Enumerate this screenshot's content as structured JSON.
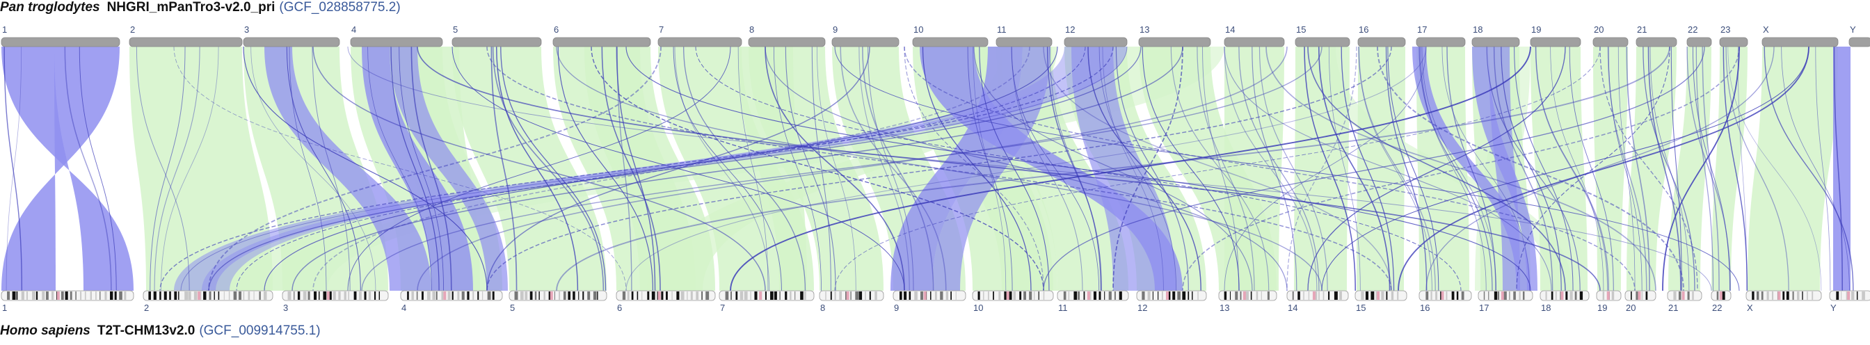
{
  "top_assembly": {
    "species": "Pan troglodytes",
    "assembly": "NHGRI_mPanTro3-v2.0_pri",
    "accession": "(GCF_028858775.2)"
  },
  "bottom_assembly": {
    "species": "Homo sapiens",
    "assembly": "T2T-CHM13v2.0",
    "accession": "(GCF_009914755.1)"
  },
  "colors": {
    "same_orientation": "#d4f3c9",
    "inverted": "#8f8ff0",
    "ideogram_top": "#a0a0a0",
    "thin_link": "#3a3ab8"
  },
  "top_chromosomes": [
    "1",
    "2",
    "3",
    "4",
    "5",
    "6",
    "7",
    "8",
    "9",
    "10",
    "11",
    "12",
    "13",
    "14",
    "15",
    "16",
    "17",
    "18",
    "19",
    "20",
    "21",
    "22",
    "23",
    "X",
    "Y"
  ],
  "bottom_chromosomes": [
    "1",
    "2",
    "3",
    "4",
    "5",
    "6",
    "7",
    "8",
    "9",
    "10",
    "11",
    "12",
    "13",
    "14",
    "15",
    "16",
    "17",
    "18",
    "19",
    "20",
    "21",
    "22",
    "X",
    "Y"
  ]
}
